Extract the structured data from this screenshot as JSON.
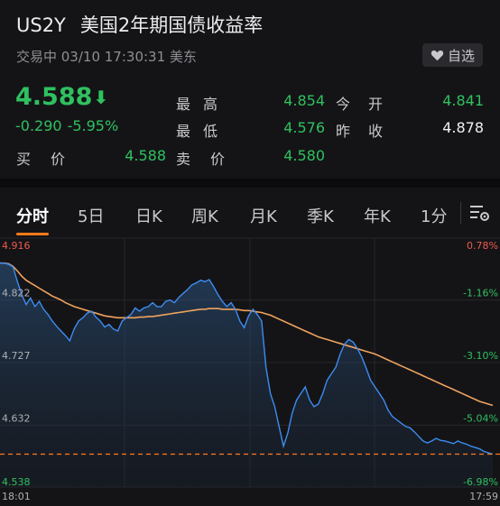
{
  "quote": {
    "symbol": "US2Y",
    "name": "美国2年期国债收益率",
    "status": "交易中 03/10 17:30:31 美东",
    "watch_label": "自选",
    "price": "4.588",
    "change": "-0.290",
    "change_pct": "-5.95%",
    "rows": [
      {
        "label": "最高",
        "value": "4.854"
      },
      {
        "label": "最低",
        "value": "4.576"
      },
      {
        "label": "今开",
        "value": "4.841"
      },
      {
        "label": "昨收",
        "value": "4.878"
      },
      {
        "label": "买价",
        "value": "4.588"
      },
      {
        "label": "卖价",
        "value": "4.580"
      }
    ]
  },
  "tabs": [
    "分时",
    "5日",
    "日K",
    "周K",
    "月K",
    "季K",
    "年K",
    "1分"
  ],
  "colors": {
    "up": "#2fc15f",
    "down_axis": "#f05a4a",
    "price_line": "#3d8cf0",
    "avg_line": "#f0a35e",
    "ref_line": "#ff7a1a"
  },
  "chart_data": {
    "type": "line",
    "x_start": "18:01",
    "x_end": "17:59",
    "ylim": [
      4.538,
      4.916
    ],
    "y_ticks": [
      "4.916",
      "4.822",
      "4.727",
      "4.632",
      "4.538"
    ],
    "pct_ticks": [
      "0.78%",
      "-1.16%",
      "-3.10%",
      "-5.04%",
      "-6.98%"
    ],
    "reference_value": 4.588,
    "series": [
      {
        "values": [
          4.878,
          4.878,
          4.876,
          4.872,
          4.85,
          4.83,
          4.815,
          4.825,
          4.812,
          4.82,
          4.808,
          4.8,
          4.79,
          4.782,
          4.775,
          4.768,
          4.76,
          4.778,
          4.79,
          4.795,
          4.802,
          4.805,
          4.796,
          4.79,
          4.781,
          4.785,
          4.778,
          4.775,
          4.79,
          4.795,
          4.8,
          4.81,
          4.805,
          4.81,
          4.812,
          4.818,
          4.812,
          4.812,
          4.82,
          4.822,
          4.818,
          4.826,
          4.832,
          4.838,
          4.845,
          4.848,
          4.852,
          4.85,
          4.853,
          4.842,
          4.83,
          4.82,
          4.812,
          4.818,
          4.808,
          4.79,
          4.78,
          4.798,
          4.808,
          4.8,
          4.79,
          4.72,
          4.68,
          4.66,
          4.63,
          4.6,
          4.62,
          4.65,
          4.67,
          4.68,
          4.69,
          4.67,
          4.66,
          4.664,
          4.68,
          4.7,
          4.71,
          4.72,
          4.74,
          4.755,
          4.762,
          4.758,
          4.748,
          4.735,
          4.718,
          4.7,
          4.69,
          4.68,
          4.67,
          4.655,
          4.645,
          4.64,
          4.635,
          4.63,
          4.628,
          4.622,
          4.615,
          4.608,
          4.605,
          4.608,
          4.612,
          4.609,
          4.608,
          4.606,
          4.604,
          4.608,
          4.605,
          4.603,
          4.6,
          4.598,
          4.596,
          4.592,
          4.59,
          4.588
        ]
      },
      {
        "values": [
          4.878,
          4.878,
          4.877,
          4.873,
          4.866,
          4.858,
          4.852,
          4.848,
          4.844,
          4.84,
          4.836,
          4.832,
          4.828,
          4.825,
          4.822,
          4.818,
          4.815,
          4.812,
          4.81,
          4.808,
          4.806,
          4.804,
          4.802,
          4.8,
          4.798,
          4.797,
          4.796,
          4.795,
          4.795,
          4.795,
          4.795,
          4.795,
          4.796,
          4.796,
          4.797,
          4.797,
          4.798,
          4.799,
          4.8,
          4.801,
          4.802,
          4.803,
          4.804,
          4.805,
          4.806,
          4.807,
          4.808,
          4.808,
          4.809,
          4.809,
          4.809,
          4.808,
          4.808,
          4.808,
          4.808,
          4.807,
          4.806,
          4.806,
          4.805,
          4.804,
          4.803,
          4.801,
          4.799,
          4.796,
          4.793,
          4.79,
          4.787,
          4.784,
          4.781,
          4.778,
          4.775,
          4.772,
          4.769,
          4.766,
          4.764,
          4.762,
          4.76,
          4.758,
          4.756,
          4.754,
          4.752,
          4.75,
          4.748,
          4.746,
          4.744,
          4.742,
          4.74,
          4.737,
          4.734,
          4.731,
          4.728,
          4.725,
          4.722,
          4.719,
          4.716,
          4.713,
          4.71,
          4.707,
          4.704,
          4.701,
          4.698,
          4.695,
          4.692,
          4.689,
          4.686,
          4.683,
          4.68,
          4.677,
          4.674,
          4.671,
          4.668,
          4.666,
          4.664,
          4.662
        ]
      }
    ]
  }
}
